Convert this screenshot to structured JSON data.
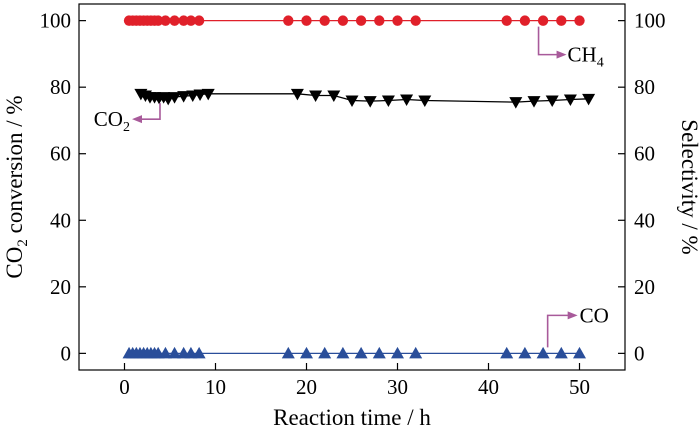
{
  "chart_data": {
    "type": "scatter",
    "xlabel": "Reaction time / h",
    "ylabel_left": {
      "main": "CO",
      "sub": "2",
      "rest": " conversion / %"
    },
    "ylabel_right": "Selectivity / %",
    "xlim": [
      -5,
      55
    ],
    "ylim": [
      -5,
      105
    ],
    "xticks": [
      0,
      10,
      20,
      30,
      40,
      50
    ],
    "yticks": [
      0,
      20,
      40,
      60,
      80,
      100
    ],
    "grid": false,
    "legend": "none",
    "series": [
      {
        "key": "ch4",
        "marker": "circle",
        "color": "#e0202a",
        "x": [
          0.5,
          0.9,
          1.3,
          1.7,
          2.1,
          2.5,
          2.9,
          3.3,
          3.7,
          4.5,
          5.5,
          6.5,
          7.3,
          8.2,
          18,
          20,
          22,
          24,
          26,
          28,
          30,
          32,
          42,
          44,
          46,
          48,
          50
        ],
        "y": [
          100,
          100,
          100,
          100,
          100,
          100,
          100,
          100,
          100,
          100,
          100,
          100,
          100,
          100,
          100,
          100,
          100,
          100,
          100,
          100,
          100,
          100,
          100,
          100,
          100,
          100,
          100
        ]
      },
      {
        "key": "co2",
        "marker": "triangle-down",
        "color": "#000000",
        "x": [
          1.8,
          2.3,
          2.8,
          3.3,
          3.8,
          4.3,
          4.8,
          5.5,
          6.5,
          7.5,
          8.3,
          9.2,
          19,
          21,
          23,
          25,
          27,
          29,
          31,
          33,
          43,
          45,
          47,
          49,
          51
        ],
        "y": [
          78,
          77.5,
          77,
          77,
          76.8,
          77,
          76.5,
          77,
          77.3,
          77.5,
          77.8,
          78,
          78,
          77.5,
          77.5,
          76,
          75.8,
          76,
          76.3,
          76,
          75.5,
          75.8,
          76,
          76.3,
          76.5
        ]
      },
      {
        "key": "co",
        "marker": "triangle-up",
        "color": "#2a4e9a",
        "x": [
          0.5,
          0.9,
          1.3,
          1.7,
          2.1,
          2.5,
          2.9,
          3.3,
          3.7,
          4.5,
          5.5,
          6.5,
          7.3,
          8.2,
          18,
          20,
          22,
          24,
          26,
          28,
          30,
          32,
          42,
          44,
          46,
          48,
          50
        ],
        "y": [
          0,
          0,
          0,
          0,
          0,
          0,
          0,
          0,
          0,
          0,
          0,
          0,
          0,
          0,
          0,
          0,
          0,
          0,
          0,
          0,
          0,
          0,
          0,
          0,
          0,
          0,
          0
        ]
      }
    ],
    "annotations": [
      {
        "key": "ch4",
        "main": "CH",
        "sub": "4",
        "color": "#a85a9a",
        "anchor_x": 45.5,
        "anchor_y": 100
      },
      {
        "key": "co2",
        "main": "CO",
        "sub": "2",
        "color": "#a85a9a",
        "anchor_x": 3.9,
        "anchor_y": 77
      },
      {
        "key": "co",
        "main": "CO",
        "sub": "",
        "color": "#a85a9a",
        "anchor_x": 46.5,
        "anchor_y": 0
      }
    ]
  }
}
